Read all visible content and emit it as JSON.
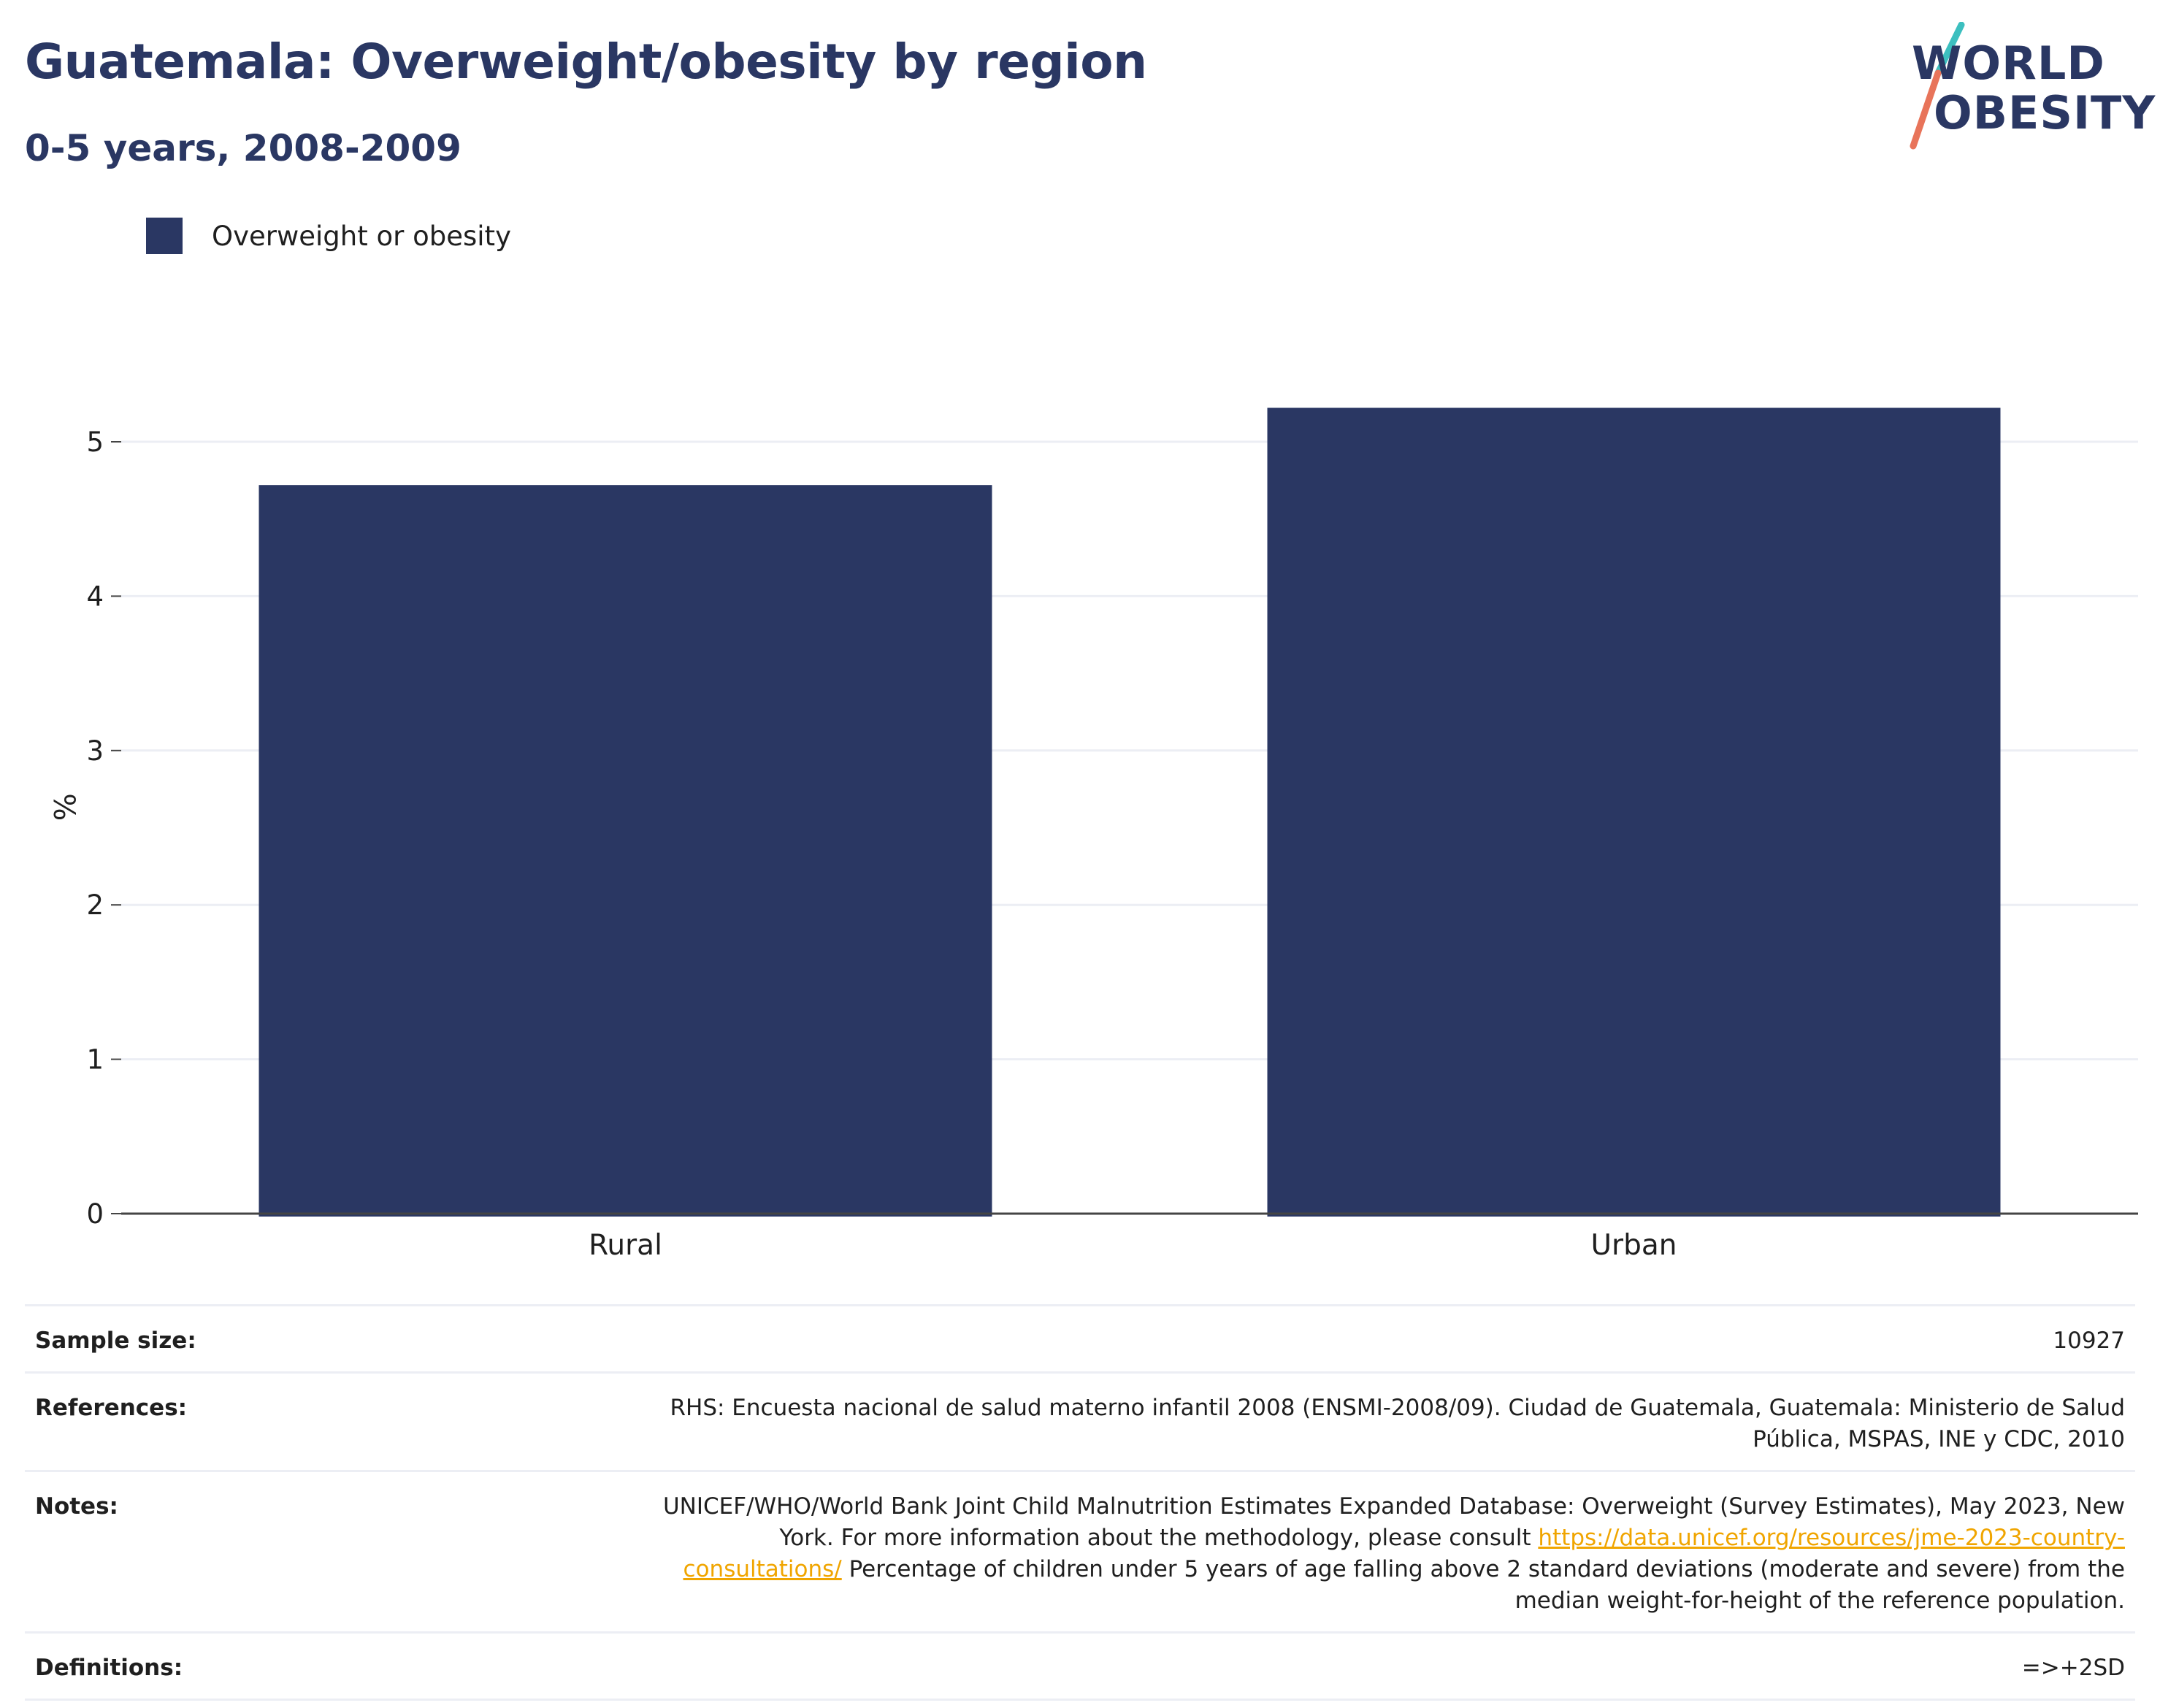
{
  "title": "Guatemala: Overweight/obesity by region",
  "subtitle": "0-5 years, 2008-2009",
  "logo": {
    "line1": "WORLD",
    "line2": "OBESITY",
    "colors": {
      "text": "#2a3763",
      "slash_top": "#3cbfbf",
      "slash_bottom": "#e8745a"
    }
  },
  "legend": {
    "label": "Overweight or obesity",
    "color": "#2a3763"
  },
  "chart_data": {
    "type": "bar",
    "categories": [
      "Rural",
      "Urban"
    ],
    "series": [
      {
        "name": "Overweight or obesity",
        "values": [
          4.72,
          5.22
        ],
        "color": "#2a3763"
      }
    ],
    "ylabel": "%",
    "ylim": [
      0,
      5.5
    ],
    "yticks": [
      0,
      1,
      2,
      3,
      4,
      5
    ],
    "grid": true,
    "legend_position": "top-left"
  },
  "info": {
    "sample_size_label": "Sample size:",
    "sample_size_value": "10927",
    "references_label": "References:",
    "references_value": "RHS: Encuesta nacional de salud materno infantil 2008 (ENSMI-2008/09). Ciudad de Guatemala, Guatemala: Ministerio de Salud Pública, MSPAS, INE y CDC, 2010",
    "notes_label": "Notes:",
    "notes_text_1": "UNICEF/WHO/World Bank Joint Child Malnutrition Estimates Expanded Database: Overweight (Survey Estimates), May 2023, New York. For more information about the methodology, please consult ",
    "notes_link": "https://data.unicef.org/resources/jme-2023-country-consultations/",
    "notes_text_2": " Percentage of children under 5 years of age falling above 2 standard deviations (moderate and severe) from the median weight-for-height of the reference population.",
    "definitions_label": "Definitions:",
    "definitions_value": "=>+2SD"
  }
}
